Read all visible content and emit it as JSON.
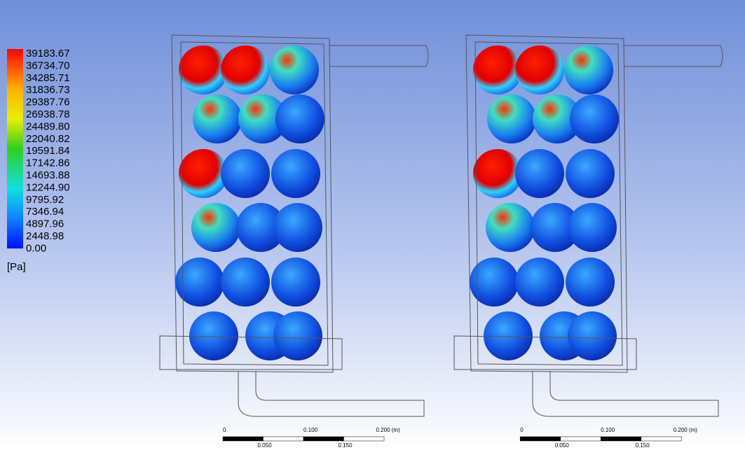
{
  "legend": {
    "labels": [
      "39183.67",
      "36734.70",
      "34285.71",
      "31836.73",
      "29387.76",
      "26938.78",
      "24489.80",
      "22040.82",
      "19591.84",
      "17142.86",
      "14693.88",
      "12244.90",
      "9795.92",
      "7346.94",
      "4897.96",
      "2448.98",
      "0.00"
    ],
    "unit": "[Pa]"
  },
  "scale_bars": [
    {
      "top": [
        "0",
        "0.100",
        "0.200 (m)"
      ],
      "bottom": [
        "0.050",
        "0.150"
      ]
    },
    {
      "top": [
        "0",
        "0.100",
        "0.200 (m)"
      ],
      "bottom": [
        "0.050",
        "0.150"
      ]
    }
  ]
}
